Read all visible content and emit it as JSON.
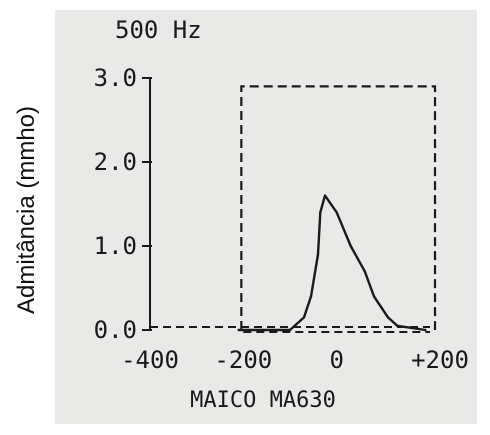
{
  "chart_data": {
    "type": "line",
    "title": "500 Hz",
    "xlabel": "MAICO MA630",
    "ylabel": "Admitância (mmho)",
    "xlim": [
      -400,
      200
    ],
    "ylim": [
      0,
      3
    ],
    "x_ticks": [
      "-400",
      "-200",
      "0",
      "+200"
    ],
    "y_ticks": [
      "0.0",
      "1.0",
      "2.0",
      "3.0"
    ],
    "grid": false,
    "series": [
      {
        "x": [
          -210,
          -100,
          -70,
          -55,
          -40,
          -35,
          -25,
          0,
          30,
          60,
          80,
          110,
          130,
          190
        ],
        "y": [
          0.0,
          0.0,
          0.15,
          0.4,
          0.9,
          1.4,
          1.6,
          1.4,
          1.0,
          0.7,
          0.4,
          0.15,
          0.05,
          0.0
        ]
      }
    ],
    "annotations": [
      {
        "type": "dashed_box",
        "x": [
          -200,
          200
        ],
        "y": [
          0,
          2.9
        ]
      }
    ]
  },
  "colors": {
    "background": "#e9e9e7",
    "ink": "#1a1a1a",
    "page": "#ffffff"
  }
}
